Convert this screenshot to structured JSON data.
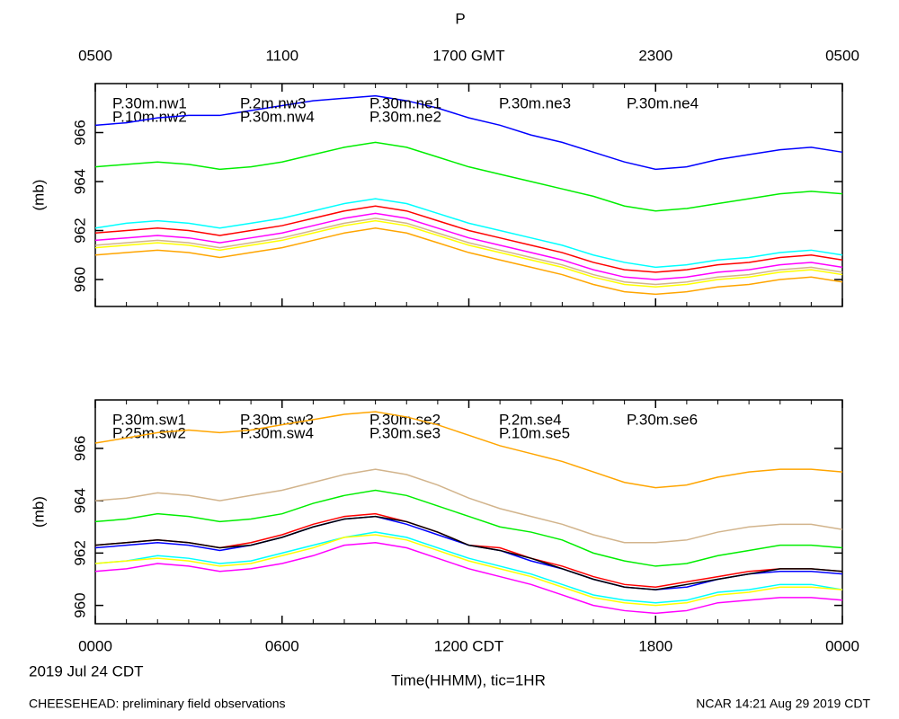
{
  "chart_data": [
    {
      "type": "line",
      "title": "P",
      "ylabel": "(mb)",
      "xlim": [
        0,
        24
      ],
      "ylim": [
        958.9,
        968.0
      ],
      "yticks": [
        960,
        962,
        964,
        966
      ],
      "xtick_position": "top",
      "xticks": [
        {
          "value": 0,
          "label": "0500"
        },
        {
          "value": 6,
          "label": "1100"
        },
        {
          "value": 12,
          "label": "1700 GMT"
        },
        {
          "value": 18,
          "label": "2300"
        },
        {
          "value": 24,
          "label": "0500"
        }
      ],
      "minor_xticks": [
        1,
        2,
        3,
        4,
        5,
        7,
        8,
        9,
        10,
        11,
        13,
        14,
        15,
        16,
        17,
        19,
        20,
        21,
        22,
        23
      ],
      "x": [
        0,
        1,
        2,
        3,
        4,
        5,
        6,
        7,
        8,
        9,
        10,
        11,
        12,
        13,
        14,
        15,
        16,
        17,
        18,
        19,
        20,
        21,
        22,
        23,
        24
      ],
      "series": [
        {
          "name": "P.30m.nw1",
          "color": "#ff0000",
          "values": [
            961.9,
            962.0,
            962.1,
            962.0,
            961.8,
            962.0,
            962.2,
            962.5,
            962.8,
            963.0,
            962.8,
            962.4,
            962.0,
            961.7,
            961.4,
            961.1,
            960.7,
            960.4,
            960.3,
            960.4,
            960.6,
            960.7,
            960.9,
            961.0,
            960.8
          ]
        },
        {
          "name": "P.10m.nw2",
          "color": "#00ee00",
          "values": [
            964.6,
            964.7,
            964.8,
            964.7,
            964.5,
            964.6,
            964.8,
            965.1,
            965.4,
            965.6,
            965.4,
            965.0,
            964.6,
            964.3,
            964.0,
            963.7,
            963.4,
            963.0,
            962.8,
            962.9,
            963.1,
            963.3,
            963.5,
            963.6,
            963.5
          ]
        },
        {
          "name": "P.2m.nw3",
          "color": "#0000ff",
          "values": [
            966.3,
            966.4,
            966.6,
            966.7,
            966.7,
            966.9,
            967.1,
            967.3,
            967.4,
            967.5,
            967.3,
            967.0,
            966.6,
            966.3,
            965.9,
            965.6,
            965.2,
            964.8,
            964.5,
            964.6,
            964.9,
            965.1,
            965.3,
            965.4,
            965.2
          ]
        },
        {
          "name": "P.30m.nw4",
          "color": "#00ffff",
          "values": [
            962.1,
            962.3,
            962.4,
            962.3,
            962.1,
            962.3,
            962.5,
            962.8,
            963.1,
            963.3,
            963.1,
            962.7,
            962.3,
            962.0,
            961.7,
            961.4,
            961.0,
            960.7,
            960.5,
            960.6,
            960.8,
            960.9,
            961.1,
            961.2,
            961.0
          ]
        },
        {
          "name": "P.30m.ne1",
          "color": "#ff00ff",
          "values": [
            961.6,
            961.7,
            961.8,
            961.7,
            961.5,
            961.7,
            961.9,
            962.2,
            962.5,
            962.7,
            962.5,
            962.1,
            961.7,
            961.4,
            961.1,
            960.8,
            960.4,
            960.1,
            960.0,
            960.1,
            960.3,
            960.4,
            960.6,
            960.7,
            960.5
          ]
        },
        {
          "name": "P.30m.ne2",
          "color": "#ffff00",
          "values": [
            961.3,
            961.4,
            961.5,
            961.4,
            961.2,
            961.4,
            961.6,
            961.9,
            962.2,
            962.4,
            962.2,
            961.8,
            961.4,
            961.1,
            960.8,
            960.5,
            960.1,
            959.8,
            959.7,
            959.8,
            960.0,
            960.1,
            960.3,
            960.4,
            960.2
          ]
        },
        {
          "name": "P.30m.ne3",
          "color": "#ffa500",
          "values": [
            961.0,
            961.1,
            961.2,
            961.1,
            960.9,
            961.1,
            961.3,
            961.6,
            961.9,
            962.1,
            961.9,
            961.5,
            961.1,
            960.8,
            960.5,
            960.2,
            959.8,
            959.5,
            959.4,
            959.5,
            959.7,
            959.8,
            960.0,
            960.1,
            959.9
          ]
        },
        {
          "name": "P.30m.ne4",
          "color": "#d2b48c",
          "values": [
            961.4,
            961.5,
            961.6,
            961.5,
            961.3,
            961.5,
            961.7,
            962.0,
            962.3,
            962.5,
            962.3,
            961.9,
            961.5,
            961.2,
            960.9,
            960.6,
            960.2,
            959.9,
            959.8,
            959.9,
            960.1,
            960.2,
            960.4,
            960.5,
            960.3
          ]
        }
      ]
    },
    {
      "type": "line",
      "ylabel": "(mb)",
      "xlabel": "Time(HHMM), tic=1HR",
      "date_label": "2019 Jul 24 CDT",
      "xlim": [
        0,
        24
      ],
      "ylim": [
        959.3,
        967.85
      ],
      "yticks": [
        960,
        962,
        964,
        966
      ],
      "xtick_position": "bottom",
      "xticks": [
        {
          "value": 0,
          "label": "0000"
        },
        {
          "value": 6,
          "label": "0600"
        },
        {
          "value": 12,
          "label": "1200 CDT"
        },
        {
          "value": 18,
          "label": "1800"
        },
        {
          "value": 24,
          "label": "0000"
        }
      ],
      "minor_xticks": [
        1,
        2,
        3,
        4,
        5,
        7,
        8,
        9,
        10,
        11,
        13,
        14,
        15,
        16,
        17,
        19,
        20,
        21,
        22,
        23
      ],
      "x": [
        0,
        1,
        2,
        3,
        4,
        5,
        6,
        7,
        8,
        9,
        10,
        11,
        12,
        13,
        14,
        15,
        16,
        17,
        18,
        19,
        20,
        21,
        22,
        23,
        24
      ],
      "series": [
        {
          "name": "P.30m.sw1",
          "color": "#ff0000",
          "values": [
            962.3,
            962.4,
            962.5,
            962.4,
            962.2,
            962.4,
            962.7,
            963.1,
            963.4,
            963.5,
            963.2,
            962.8,
            962.3,
            962.2,
            961.8,
            961.5,
            961.1,
            960.8,
            960.7,
            960.9,
            961.1,
            961.3,
            961.4,
            961.4,
            961.3
          ]
        },
        {
          "name": "P.25m.sw2",
          "color": "#00ee00",
          "values": [
            963.2,
            963.3,
            963.5,
            963.4,
            963.2,
            963.3,
            963.5,
            963.9,
            964.2,
            964.4,
            964.2,
            963.8,
            963.4,
            963.0,
            962.8,
            962.5,
            962.0,
            961.7,
            961.5,
            961.6,
            961.9,
            962.1,
            962.3,
            962.3,
            962.2
          ]
        },
        {
          "name": "P.30m.sw3",
          "color": "#0000ff",
          "values": [
            962.2,
            962.3,
            962.4,
            962.3,
            962.1,
            962.3,
            962.6,
            963.0,
            963.3,
            963.4,
            963.1,
            962.7,
            962.3,
            962.1,
            961.7,
            961.4,
            961.0,
            960.7,
            960.6,
            960.7,
            961.0,
            961.2,
            961.3,
            961.3,
            961.2
          ]
        },
        {
          "name": "P.30m.sw4",
          "color": "#00ffff",
          "values": [
            961.6,
            961.7,
            961.9,
            961.8,
            961.6,
            961.7,
            962.0,
            962.3,
            962.6,
            962.8,
            962.6,
            962.2,
            961.8,
            961.5,
            961.2,
            960.8,
            960.4,
            960.2,
            960.1,
            960.2,
            960.5,
            960.6,
            960.8,
            960.8,
            960.6
          ]
        },
        {
          "name": "P.30m.se2",
          "color": "#ff00ff",
          "values": [
            961.3,
            961.4,
            961.6,
            961.5,
            961.3,
            961.4,
            961.6,
            961.9,
            962.3,
            962.4,
            962.2,
            961.8,
            961.4,
            961.1,
            960.8,
            960.4,
            960.0,
            959.8,
            959.7,
            959.8,
            960.1,
            960.2,
            960.3,
            960.3,
            960.2
          ]
        },
        {
          "name": "P.30m.se3",
          "color": "#ffff00",
          "values": [
            961.6,
            961.7,
            961.8,
            961.7,
            961.5,
            961.6,
            961.9,
            962.2,
            962.6,
            962.7,
            962.5,
            962.1,
            961.7,
            961.4,
            961.1,
            960.7,
            960.3,
            960.1,
            960.0,
            960.1,
            960.4,
            960.5,
            960.7,
            960.7,
            960.6
          ]
        },
        {
          "name": "P.2m.se4",
          "color": "#ffa500",
          "values": [
            966.2,
            966.4,
            966.6,
            966.7,
            966.6,
            966.7,
            966.9,
            967.1,
            967.3,
            967.4,
            967.2,
            966.9,
            966.5,
            966.1,
            965.8,
            965.5,
            965.1,
            964.7,
            964.5,
            964.6,
            964.9,
            965.1,
            965.2,
            965.2,
            965.1
          ]
        },
        {
          "name": "P.10m.se5",
          "color": "#d2b48c",
          "values": [
            964.0,
            964.1,
            964.3,
            964.2,
            964.0,
            964.2,
            964.4,
            964.7,
            965.0,
            965.2,
            965.0,
            964.6,
            964.1,
            963.7,
            963.4,
            963.1,
            962.7,
            962.4,
            962.4,
            962.5,
            962.8,
            963.0,
            963.1,
            963.1,
            962.9
          ]
        },
        {
          "name": "P.30m.se6",
          "color": "#000000",
          "values": [
            962.3,
            962.4,
            962.5,
            962.4,
            962.2,
            962.3,
            962.6,
            963.0,
            963.3,
            963.4,
            963.2,
            962.8,
            962.3,
            962.1,
            961.8,
            961.4,
            961.0,
            960.7,
            960.6,
            960.8,
            961.0,
            961.2,
            961.4,
            961.4,
            961.3
          ]
        }
      ]
    }
  ],
  "footer": {
    "left": "CHEESEHEAD: preliminary field observations",
    "right": "NCAR 14:21 Aug 29 2019 CDT"
  }
}
